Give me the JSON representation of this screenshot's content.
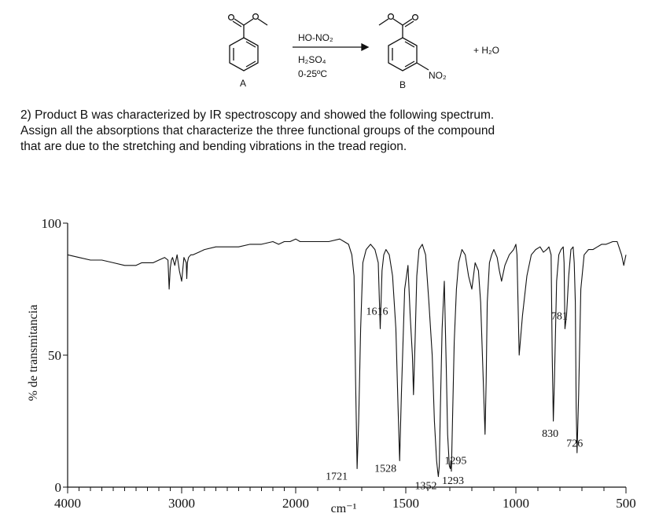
{
  "scheme": {
    "reactant_label": "A",
    "reagent_top": "HO-NO₂",
    "reagent_mid": "H₂SO₄",
    "reagent_bottom": "0-25ºC",
    "product_label": "B",
    "product_substituent": "NO₂",
    "byproduct": "+ H₂O"
  },
  "question": {
    "line1": "2)   Product B was characterized by IR spectroscopy and showed the following spectrum.",
    "line2": "Assign all the absorptions that characterize the three functional groups of the compound",
    "line3": "that are due to the stretching and bending vibrations in the tread region."
  },
  "chart_data": {
    "type": "line",
    "title": "",
    "xlabel": "cm⁻¹",
    "ylabel": "% de transmitancia",
    "xlim": [
      4000,
      500
    ],
    "ylim": [
      0,
      100
    ],
    "x_major_ticks": [
      4000,
      3000,
      2000,
      1500,
      1000,
      500
    ],
    "y_ticks": [
      0,
      50,
      100
    ],
    "x_tick_labels": [
      "4000",
      "3000",
      "2000",
      "1500",
      "1000",
      "500"
    ],
    "y_tick_labels": [
      "0",
      "50",
      "100"
    ],
    "grid": false,
    "series": [
      {
        "name": "",
        "x": [
          4000,
          3900,
          3800,
          3700,
          3600,
          3500,
          3450,
          3400,
          3350,
          3300,
          3250,
          3200,
          3150,
          3120,
          3110,
          3100,
          3090,
          3080,
          3060,
          3040,
          3020,
          3000,
          2980,
          2960,
          2955,
          2950,
          2940,
          2920,
          2900,
          2850,
          2800,
          2700,
          2600,
          2500,
          2400,
          2300,
          2200,
          2150,
          2100,
          2050,
          2000,
          1980,
          1950,
          1900,
          1850,
          1800,
          1780,
          1760,
          1745,
          1735,
          1728,
          1721,
          1714,
          1705,
          1695,
          1680,
          1660,
          1640,
          1625,
          1616,
          1608,
          1600,
          1590,
          1575,
          1560,
          1545,
          1535,
          1528,
          1520,
          1505,
          1490,
          1480,
          1470,
          1465,
          1458,
          1450,
          1440,
          1425,
          1410,
          1395,
          1380,
          1370,
          1360,
          1355,
          1352,
          1348,
          1343,
          1335,
          1325,
          1316,
          1310,
          1302,
          1298,
          1295,
          1293,
          1288,
          1280,
          1270,
          1260,
          1245,
          1230,
          1215,
          1200,
          1185,
          1170,
          1160,
          1150,
          1140,
          1135,
          1130,
          1120,
          1110,
          1100,
          1085,
          1075,
          1065,
          1050,
          1030,
          1010,
          1000,
          995,
          985,
          970,
          950,
          930,
          910,
          890,
          875,
          860,
          850,
          840,
          835,
          830,
          825,
          815,
          805,
          795,
          785,
          781,
          777,
          770,
          760,
          750,
          740,
          735,
          730,
          726,
          722,
          715,
          705,
          690,
          670,
          650,
          630,
          610,
          590,
          560,
          540,
          520,
          510,
          500
        ],
        "y": [
          88,
          87,
          86,
          86,
          85,
          84,
          84,
          84,
          85,
          85,
          85,
          86,
          87,
          86,
          75,
          83,
          86,
          87,
          84,
          88,
          82,
          78,
          87,
          85,
          79,
          85,
          87,
          88,
          88,
          89,
          90,
          91,
          91,
          91,
          92,
          92,
          93,
          92,
          93,
          93,
          94,
          93,
          93,
          93,
          93,
          94,
          93,
          92,
          88,
          80,
          40,
          7,
          25,
          60,
          85,
          90,
          92,
          90,
          85,
          60,
          82,
          88,
          90,
          88,
          80,
          60,
          30,
          10,
          35,
          75,
          84,
          65,
          50,
          35,
          55,
          80,
          90,
          92,
          88,
          70,
          50,
          25,
          10,
          6,
          4,
          8,
          30,
          60,
          78,
          45,
          20,
          8,
          7,
          10,
          6,
          25,
          55,
          75,
          85,
          90,
          88,
          80,
          75,
          85,
          82,
          70,
          45,
          20,
          40,
          70,
          85,
          88,
          90,
          87,
          82,
          78,
          84,
          88,
          90,
          92,
          88,
          50,
          65,
          80,
          88,
          90,
          91,
          89,
          90,
          91,
          88,
          50,
          25,
          40,
          78,
          88,
          90,
          91,
          85,
          60,
          65,
          80,
          90,
          91,
          85,
          70,
          30,
          13,
          35,
          75,
          88,
          90,
          90,
          91,
          92,
          92,
          93,
          93,
          88,
          84,
          88
        ]
      }
    ],
    "annotations": [
      {
        "x": 1721,
        "y": 7,
        "text": "1721"
      },
      {
        "x": 1616,
        "y": 60,
        "text": "1616"
      },
      {
        "x": 1528,
        "y": 10,
        "text": "1528"
      },
      {
        "x": 1352,
        "y": 4,
        "text": "1352"
      },
      {
        "x": 1295,
        "y": 10,
        "text": "1295"
      },
      {
        "x": 1293,
        "y": 6,
        "text": "1293"
      },
      {
        "x": 830,
        "y": 25,
        "text": "830"
      },
      {
        "x": 781,
        "y": 60,
        "text": "781"
      },
      {
        "x": 726,
        "y": 13,
        "text": "726"
      }
    ]
  }
}
